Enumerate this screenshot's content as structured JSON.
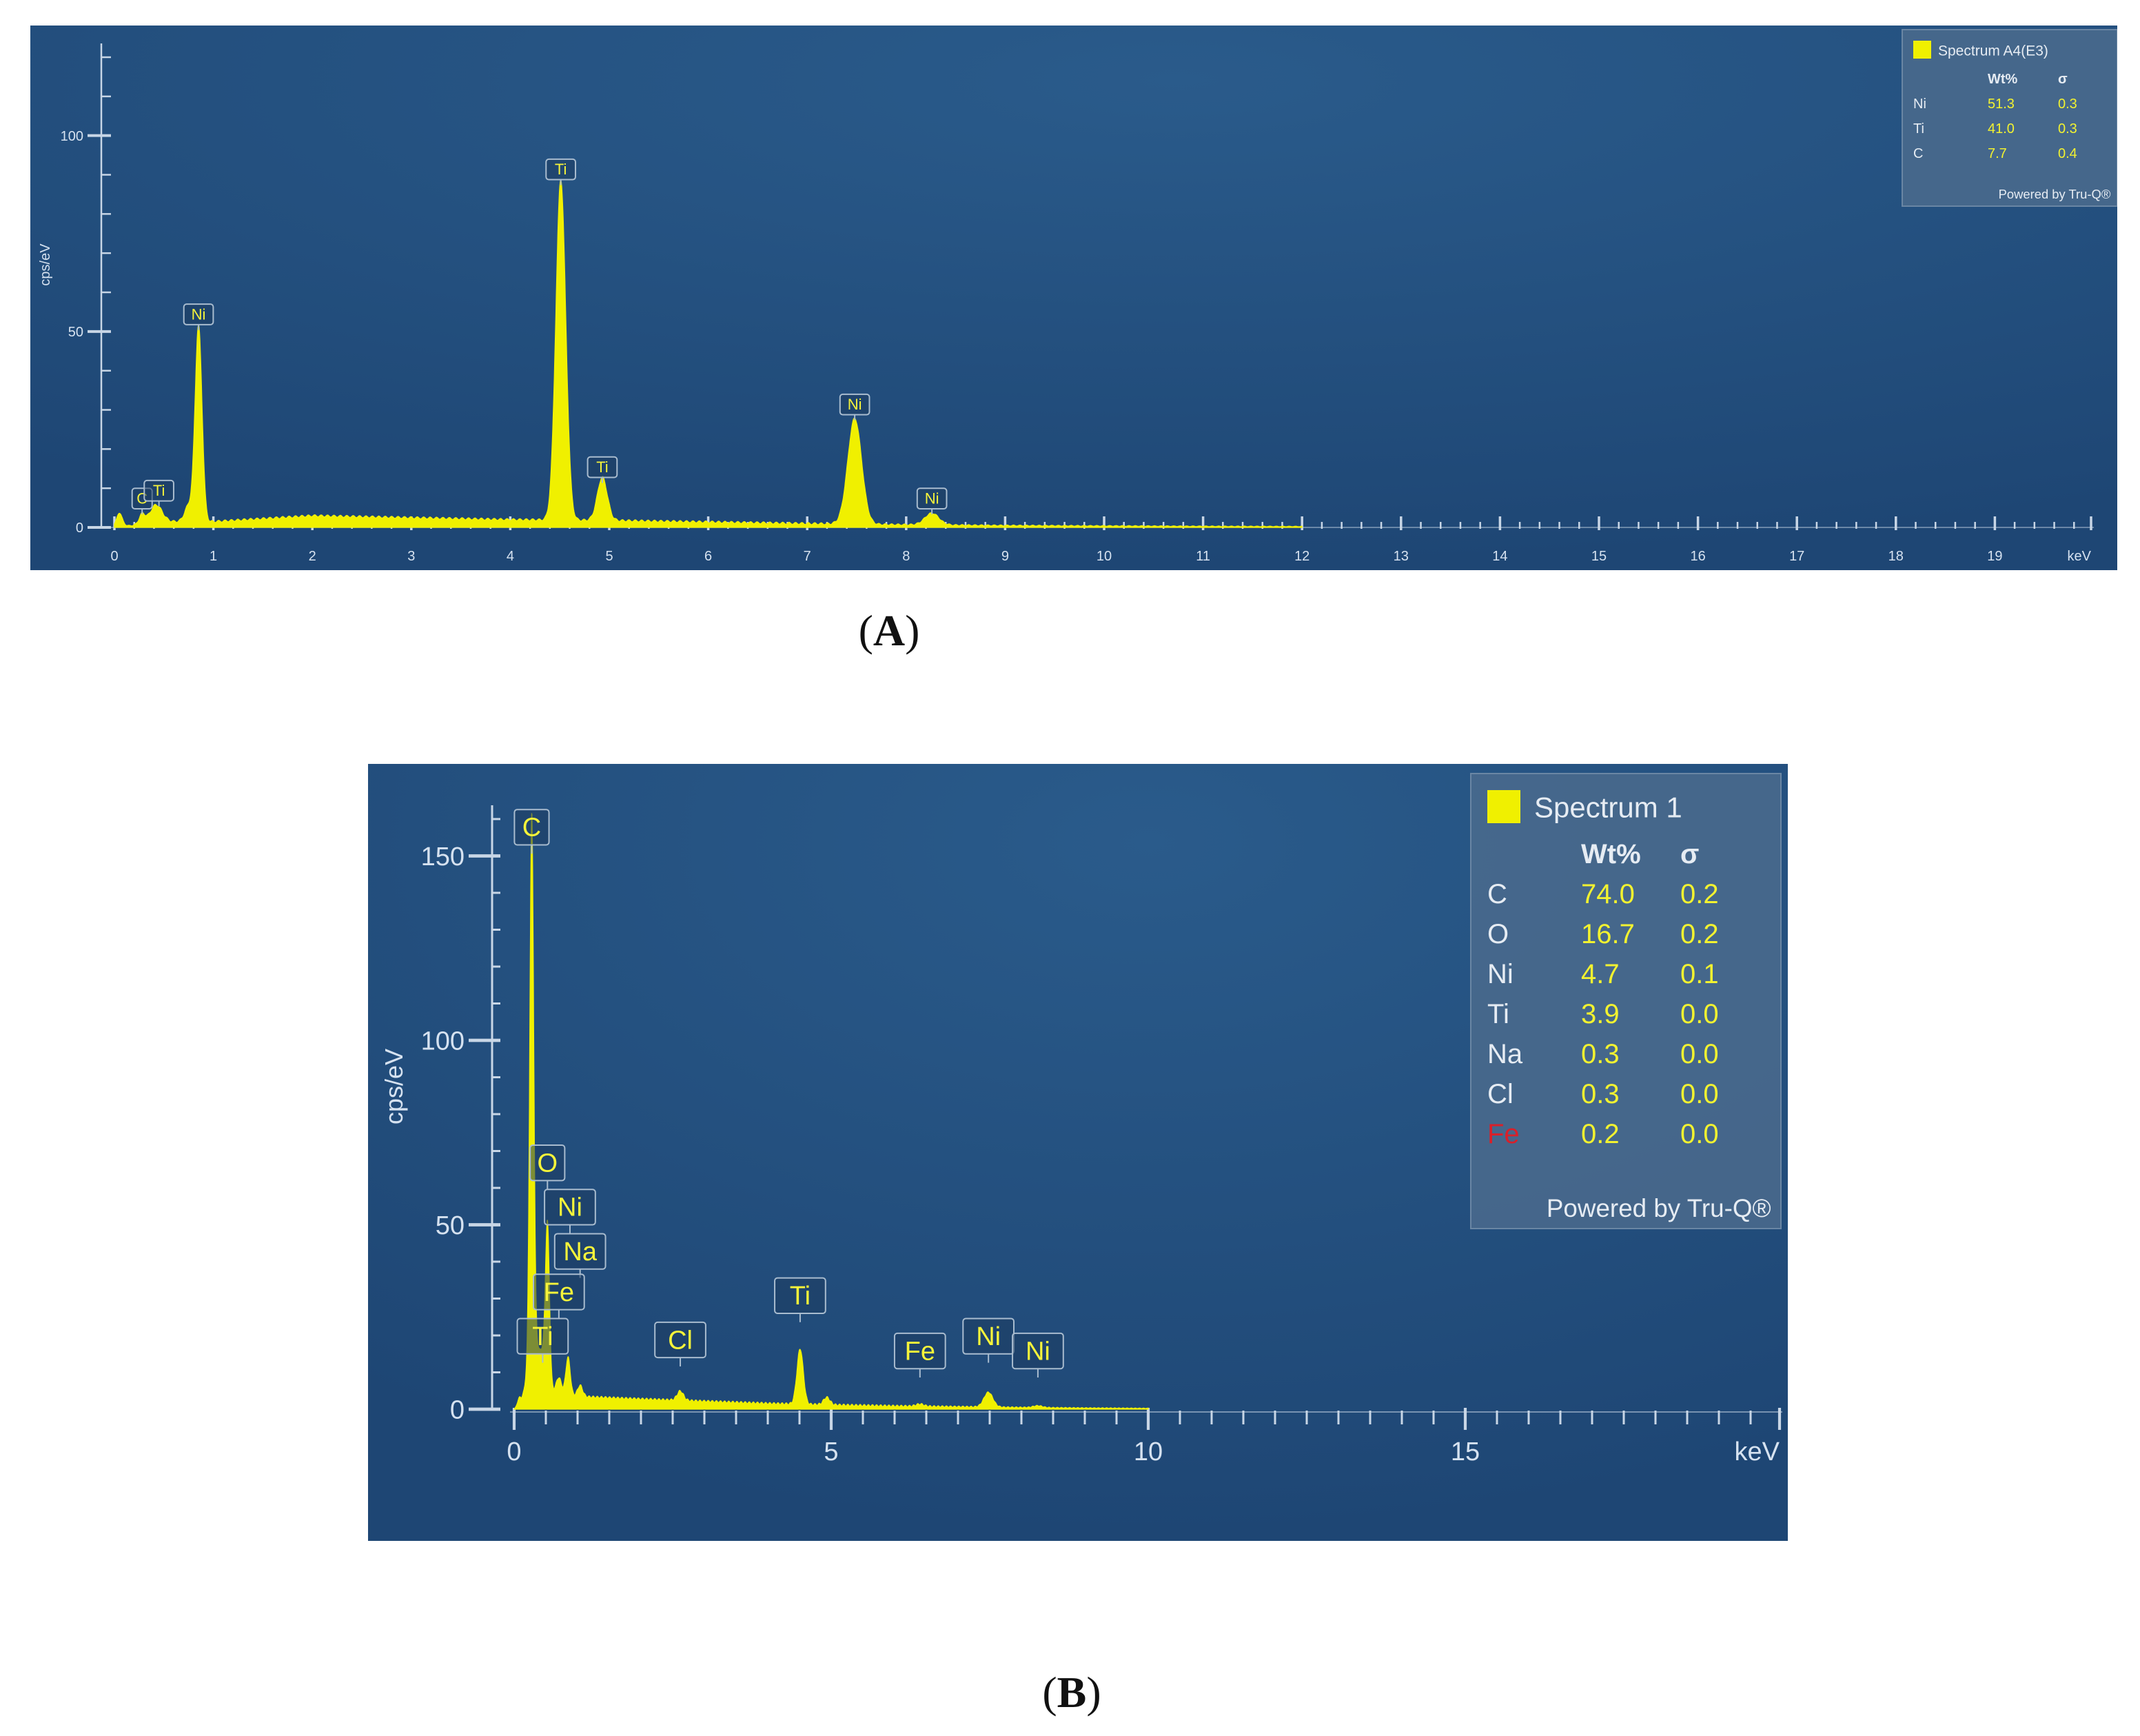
{
  "chart_data": [
    {
      "type": "area",
      "panel": "A",
      "caption": "A",
      "xlabel": "keV",
      "ylabel": "cps/eV",
      "xlim": [
        0,
        20
      ],
      "ylim": [
        0,
        120
      ],
      "x_ticks": [
        "0",
        "1",
        "2",
        "3",
        "4",
        "5",
        "6",
        "7",
        "8",
        "9",
        "10",
        "11",
        "12",
        "13",
        "14",
        "15",
        "16",
        "17",
        "18",
        "19"
      ],
      "y_ticks": [
        "0",
        "50",
        "100"
      ],
      "grid": false,
      "colors": {
        "background": "#1e4674",
        "spectrum": "#f0f000"
      },
      "series": [
        {
          "name": "Spectrum A4(E3)",
          "peaks": [
            {
              "x": 0.05,
              "y": 3.5,
              "w": 0.03
            },
            {
              "x": 0.28,
              "y": 2.5,
              "w": 0.03
            },
            {
              "x": 0.42,
              "y": 4.5,
              "w": 0.06
            },
            {
              "x": 0.75,
              "y": 4,
              "w": 0.04
            },
            {
              "x": 0.85,
              "y": 50,
              "w": 0.035
            },
            {
              "x": 4.51,
              "y": 87,
              "w": 0.05
            },
            {
              "x": 4.93,
              "y": 11,
              "w": 0.05
            },
            {
              "x": 7.48,
              "y": 27,
              "w": 0.07
            },
            {
              "x": 8.26,
              "y": 3,
              "w": 0.07
            }
          ],
          "background": [
            [
              0,
              0
            ],
            [
              0.5,
              1.5
            ],
            [
              1.0,
              1.5
            ],
            [
              2.0,
              3.0
            ],
            [
              3.0,
              2.5
            ],
            [
              4.0,
              2.0
            ],
            [
              5.0,
              1.8
            ],
            [
              6.0,
              1.4
            ],
            [
              7.0,
              1.0
            ],
            [
              8.0,
              0.7
            ],
            [
              9.0,
              0.5
            ],
            [
              11.0,
              0.3
            ],
            [
              14.0,
              0.15
            ],
            [
              20,
              0.05
            ]
          ]
        }
      ],
      "peak_labels": [
        {
          "text": "Ni",
          "x": 0.85,
          "y": 50
        },
        {
          "text": "Ti",
          "x": 4.51,
          "y": 87
        },
        {
          "text": "Ti",
          "x": 4.93,
          "y": 11
        },
        {
          "text": "Ni",
          "x": 7.48,
          "y": 27
        },
        {
          "text": "Ni",
          "x": 8.26,
          "y": 3
        },
        {
          "text": "C",
          "x": 0.28,
          "y": 3
        },
        {
          "text": "Ti",
          "x": 0.45,
          "y": 5
        }
      ],
      "legend": {
        "title": "Spectrum A4(E3)",
        "headers": [
          "Wt%",
          "σ"
        ],
        "rows": [
          {
            "element": "Ni",
            "wt": "51.3",
            "sigma": "0.3"
          },
          {
            "element": "Ti",
            "wt": "41.0",
            "sigma": "0.3"
          },
          {
            "element": "C",
            "wt": "7.7",
            "sigma": "0.4"
          }
        ],
        "footer": "Powered by Tru-Q®",
        "placement": "top-right"
      }
    },
    {
      "type": "area",
      "panel": "B",
      "caption": "B",
      "xlabel": "keV",
      "ylabel": "cps/eV",
      "xlim": [
        0,
        20
      ],
      "ylim": [
        0,
        160
      ],
      "x_ticks": [
        "0",
        "5",
        "10",
        "15"
      ],
      "y_ticks": [
        "0",
        "50",
        "100",
        "150"
      ],
      "grid": false,
      "colors": {
        "background": "#1e4674",
        "spectrum": "#f0f000",
        "legend_red": "#d8202a"
      },
      "series": [
        {
          "name": "Spectrum 1",
          "peaks": [
            {
              "x": 0.08,
              "y": 2,
              "w": 0.03
            },
            {
              "x": 0.277,
              "y": 140,
              "w": 0.03
            },
            {
              "x": 0.3,
              "y": 20,
              "w": 0.08
            },
            {
              "x": 0.45,
              "y": 8,
              "w": 0.04
            },
            {
              "x": 0.525,
              "y": 45,
              "w": 0.032
            },
            {
              "x": 0.705,
              "y": 4,
              "w": 0.04
            },
            {
              "x": 0.85,
              "y": 10,
              "w": 0.035
            },
            {
              "x": 1.04,
              "y": 3,
              "w": 0.04
            },
            {
              "x": 2.62,
              "y": 2.5,
              "w": 0.05
            },
            {
              "x": 4.51,
              "y": 15,
              "w": 0.05
            },
            {
              "x": 4.93,
              "y": 2,
              "w": 0.05
            },
            {
              "x": 6.4,
              "y": 0.6,
              "w": 0.06
            },
            {
              "x": 7.48,
              "y": 4,
              "w": 0.07
            },
            {
              "x": 8.26,
              "y": 0.5,
              "w": 0.07
            }
          ],
          "background": [
            [
              0,
              0
            ],
            [
              0.6,
              5.0
            ],
            [
              1.0,
              3.5
            ],
            [
              2.0,
              2.8
            ],
            [
              3.0,
              2.2
            ],
            [
              4.0,
              1.6
            ],
            [
              5.0,
              1.2
            ],
            [
              6.0,
              0.9
            ],
            [
              7.0,
              0.7
            ],
            [
              8.0,
              0.5
            ],
            [
              9.0,
              0.35
            ],
            [
              10.0,
              0.25
            ],
            [
              12.0,
              0.12
            ],
            [
              20,
              0.03
            ]
          ]
        }
      ],
      "peak_labels": [
        {
          "text": "C",
          "x": 0.277,
          "y": 150
        },
        {
          "text": "O",
          "x": 0.525,
          "y": 59
        },
        {
          "text": "Ni",
          "x": 0.88,
          "y": 47
        },
        {
          "text": "Na",
          "x": 1.04,
          "y": 35
        },
        {
          "text": "Fe",
          "x": 0.705,
          "y": 24
        },
        {
          "text": "Ti",
          "x": 0.45,
          "y": 12
        },
        {
          "text": "Cl",
          "x": 2.62,
          "y": 11
        },
        {
          "text": "Ti",
          "x": 4.51,
          "y": 23
        },
        {
          "text": "Fe",
          "x": 6.4,
          "y": 8
        },
        {
          "text": "Ni",
          "x": 7.48,
          "y": 12
        },
        {
          "text": "Ni",
          "x": 8.26,
          "y": 8
        }
      ],
      "legend": {
        "title": "Spectrum 1",
        "headers": [
          "Wt%",
          "σ"
        ],
        "rows": [
          {
            "element": "C",
            "wt": "74.0",
            "sigma": "0.2"
          },
          {
            "element": "O",
            "wt": "16.7",
            "sigma": "0.2"
          },
          {
            "element": "Ni",
            "wt": "4.7",
            "sigma": "0.1"
          },
          {
            "element": "Ti",
            "wt": "3.9",
            "sigma": "0.0"
          },
          {
            "element": "Na",
            "wt": "0.3",
            "sigma": "0.0"
          },
          {
            "element": "Cl",
            "wt": "0.3",
            "sigma": "0.0"
          },
          {
            "element": "Fe",
            "wt": "0.2",
            "sigma": "0.0",
            "highlight": true
          }
        ],
        "footer": "Powered by Tru-Q®",
        "placement": "top-right"
      }
    }
  ]
}
